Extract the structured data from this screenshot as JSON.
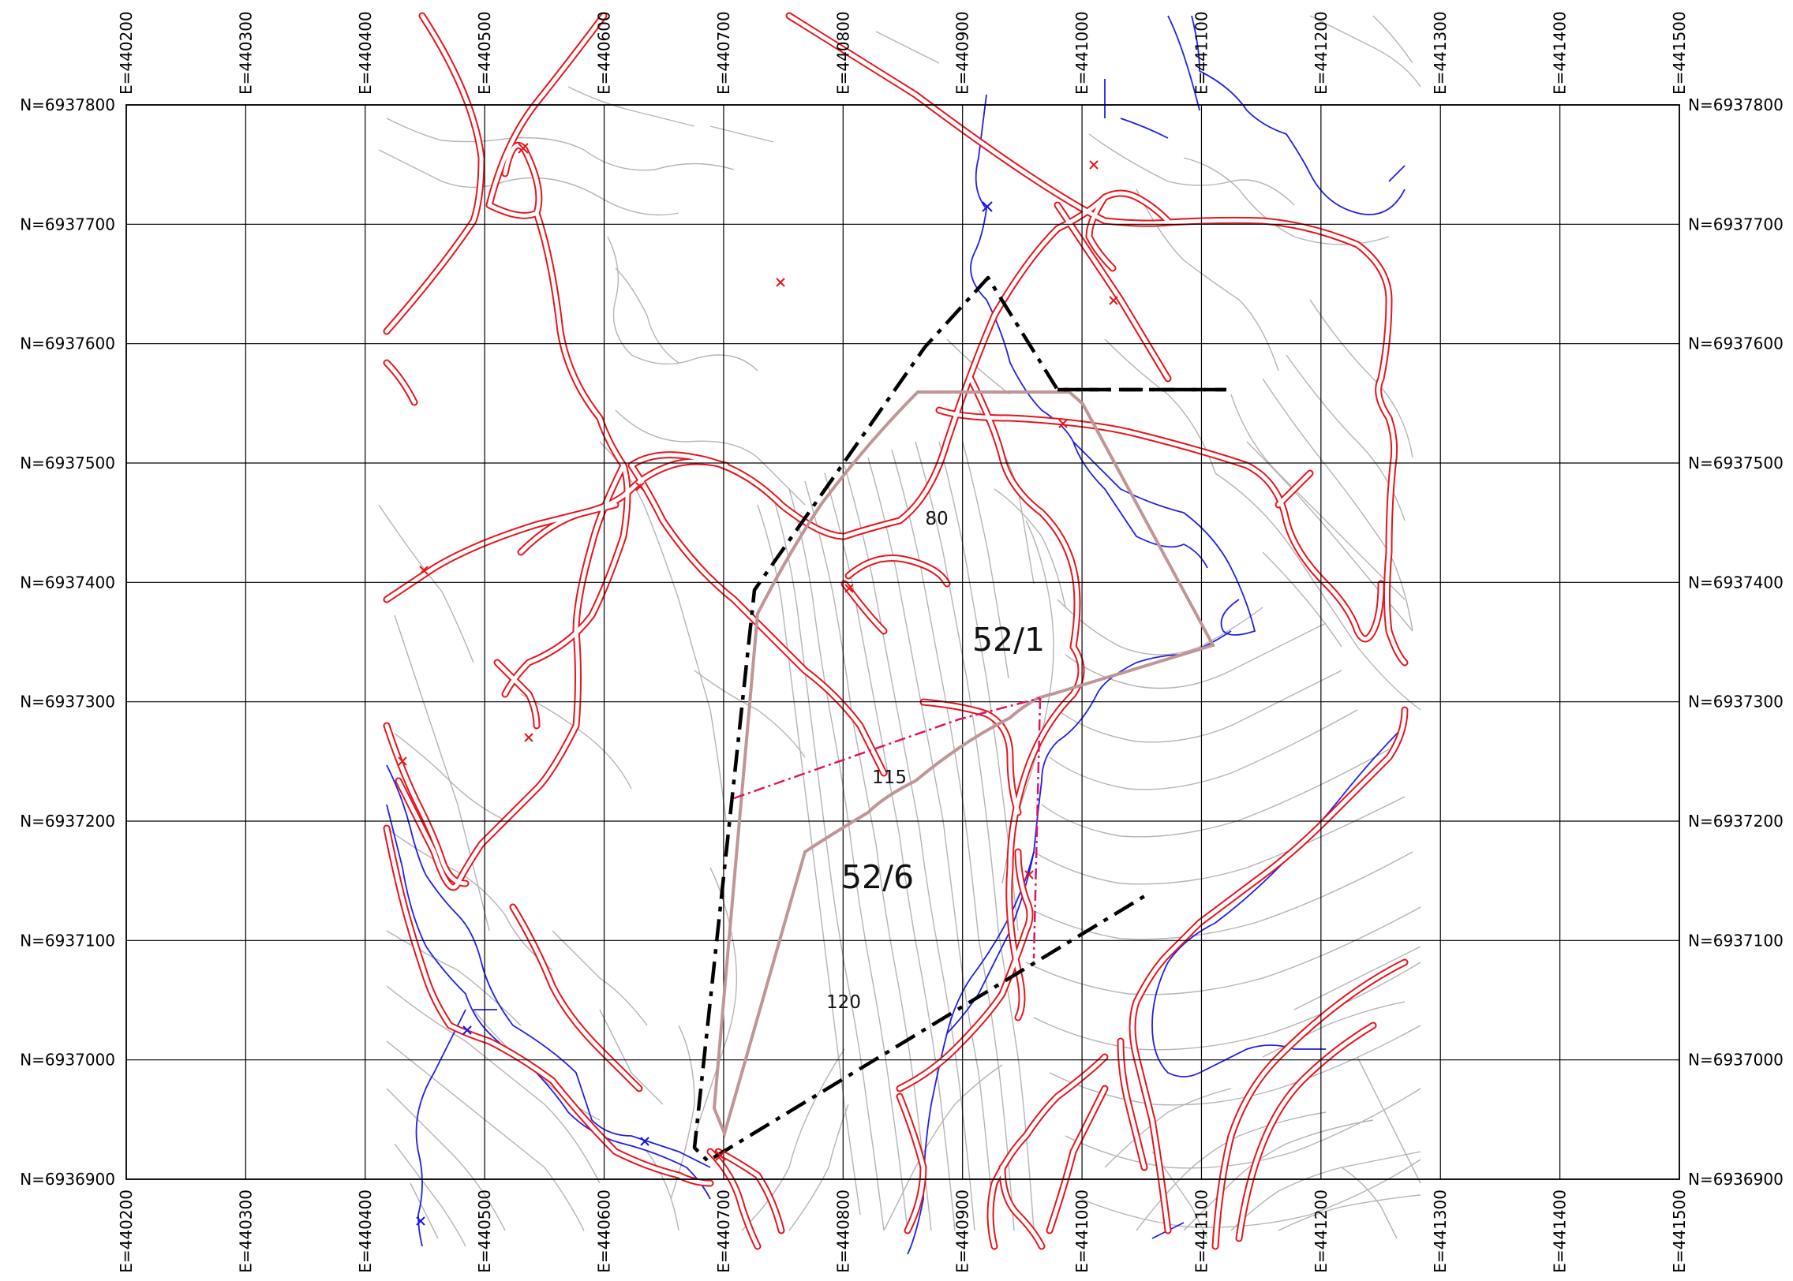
{
  "colors": {
    "background": "#ffffff",
    "grid": "#000000",
    "contour": "#b4b4b4",
    "road": "#e8141c",
    "water": "#1414e6",
    "boundary": "#000000",
    "parcel_outline": "#bf9696",
    "subdivision": "#e01464"
  },
  "grid": {
    "eastings": [
      "440200",
      "440300",
      "440400",
      "440500",
      "440600",
      "440700",
      "440800",
      "440900",
      "441000",
      "441100",
      "441200",
      "441300",
      "441400",
      "441500"
    ],
    "easting_prefix": "E=",
    "northings": [
      "6937800",
      "6937700",
      "6937600",
      "6937500",
      "6937400",
      "6937300",
      "6937200",
      "6937100",
      "6937000",
      "6936900"
    ],
    "northing_prefix": "N="
  },
  "parcels": [
    {
      "label": "52/1",
      "kind": "parcel-number"
    },
    {
      "label": "52/6",
      "kind": "parcel-number"
    },
    {
      "label": "80",
      "kind": "area-value"
    },
    {
      "label": "115",
      "kind": "area-value"
    },
    {
      "label": "120",
      "kind": "area-value"
    }
  ]
}
